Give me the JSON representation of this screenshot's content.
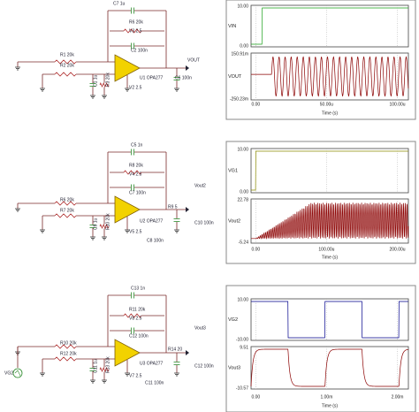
{
  "panels": [
    {
      "schematic": {
        "labels": [
          "C7 1u",
          "R6 20k",
          "V3 2.5",
          "C2 100n",
          "R1 20k",
          "R2 20k",
          "VOUT",
          "U1 OPA277",
          "C1 1u",
          "R3 20k",
          "V2 2.5",
          "C6 100n"
        ]
      },
      "plot": {
        "traces": [
          {
            "name": "VIN",
            "top": "10.00",
            "bottom": "0.00",
            "color": "#1aa01a"
          },
          {
            "name": "VOUT",
            "top": "150.91m",
            "bottom": "-250.23m",
            "color": "#8b0000"
          }
        ],
        "x_ticks": [
          "0.00",
          "50.00u",
          "100.00u"
        ],
        "x_label": "Time (s)"
      }
    },
    {
      "schematic": {
        "labels": [
          "C5 1n",
          "R8 20k",
          "V4 2.5",
          "C7 100n",
          "Vout2",
          "R6 20k",
          "R7 20k",
          "U2 OPA277",
          "R9 5",
          "C9 1u",
          "R10 20k",
          "V5 2.5",
          "C8 100n",
          "C10 100n"
        ]
      },
      "plot": {
        "traces": [
          {
            "name": "VG1",
            "top": "10.00",
            "bottom": "0.00",
            "color": "#8a8a00"
          },
          {
            "name": "Vout2",
            "top": "22.78",
            "bottom": "-5.24",
            "color": "#8b0000"
          }
        ],
        "x_ticks": [
          "0.00",
          "100.00u",
          "200.00u"
        ],
        "x_label": "Time (s)"
      }
    },
    {
      "schematic": {
        "labels": [
          "C13 1n",
          "R11 20k",
          "V8 2.5",
          "C12 100n",
          "Vout3",
          "R10 20k",
          "R12 20k",
          "U3 OPA277",
          "R14 20",
          "VG2",
          "C11 1u",
          "R13 20k",
          "V7 2.5",
          "C11 100n",
          "C12 100n"
        ]
      },
      "plot": {
        "traces": [
          {
            "name": "VG2",
            "top": "10.00",
            "bottom": "-10.00",
            "color": "#00008b"
          },
          {
            "name": "Vout3",
            "top": "9.51",
            "bottom": "-10.57",
            "color": "#8b0000"
          }
        ],
        "x_ticks": [
          "0.00",
          "1.00m",
          "2.00m"
        ],
        "x_label": "Time (s)"
      }
    }
  ]
}
